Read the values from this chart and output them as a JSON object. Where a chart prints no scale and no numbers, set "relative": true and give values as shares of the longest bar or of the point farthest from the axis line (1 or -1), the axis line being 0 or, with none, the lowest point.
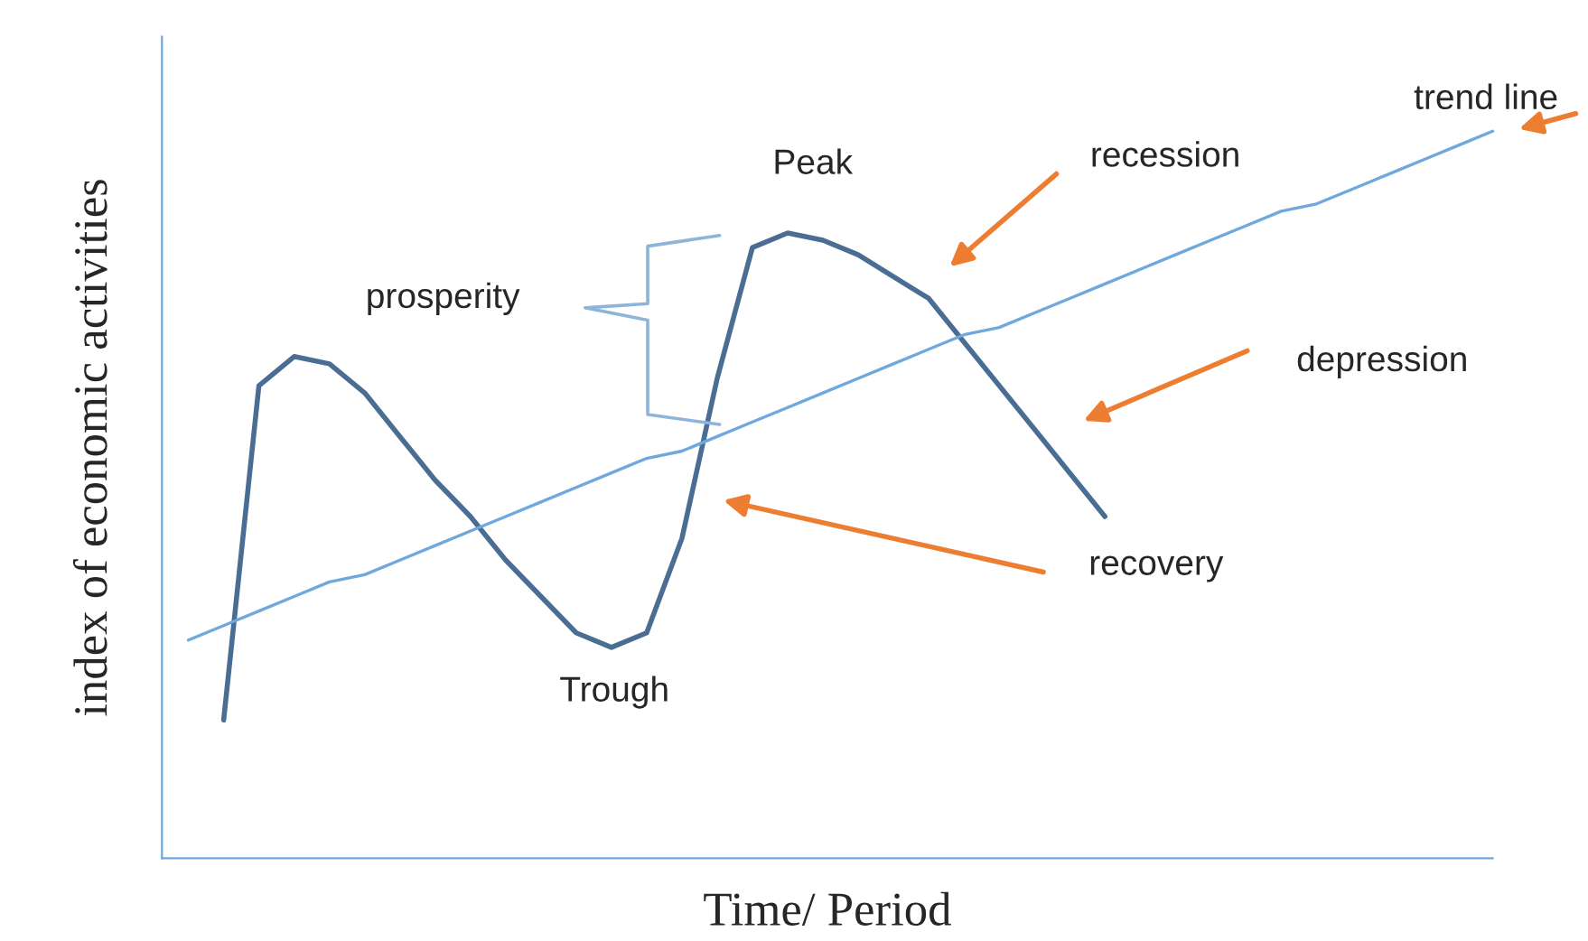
{
  "chart_data": {
    "type": "line",
    "relative": true,
    "xlabel": "Time/ Period",
    "ylabel": "index of economic activities",
    "categories": [
      null,
      null,
      null,
      null,
      null,
      null,
      null,
      null,
      null,
      null,
      null,
      null,
      null,
      null,
      null,
      null,
      null,
      null,
      null,
      null,
      null,
      null,
      null,
      null,
      null,
      null,
      null,
      null,
      null,
      null,
      null,
      null,
      null,
      null,
      null,
      null,
      null,
      null
    ],
    "series": [
      {
        "color": "#4a6d94",
        "values": [
          null,
          0.19,
          0.65,
          0.69,
          0.68,
          0.64,
          0.58,
          0.52,
          0.47,
          0.41,
          0.36,
          0.31,
          0.29,
          0.31,
          0.44,
          0.66,
          0.84,
          0.86,
          0.85,
          0.83,
          0.8,
          0.77,
          0.71,
          0.65,
          0.59,
          0.53,
          0.47,
          null,
          null,
          null,
          null,
          null,
          null,
          null,
          null,
          null,
          null,
          null
        ]
      },
      {
        "color": "#6fa8dc",
        "values": [
          0.3,
          0.32,
          0.34,
          0.36,
          0.38,
          0.39,
          0.41,
          0.43,
          0.45,
          0.47,
          0.49,
          0.51,
          0.53,
          0.55,
          0.56,
          0.58,
          0.6,
          0.62,
          0.64,
          0.66,
          0.68,
          0.7,
          0.72,
          0.73,
          0.75,
          0.77,
          0.79,
          0.81,
          0.83,
          0.85,
          0.87,
          0.89,
          0.9,
          0.92,
          0.94,
          0.96,
          0.98,
          1.0
        ]
      }
    ],
    "annotations": [
      "Peak",
      "Trough",
      "prosperity",
      "recession",
      "depression",
      "recovery",
      "trend line"
    ]
  }
}
